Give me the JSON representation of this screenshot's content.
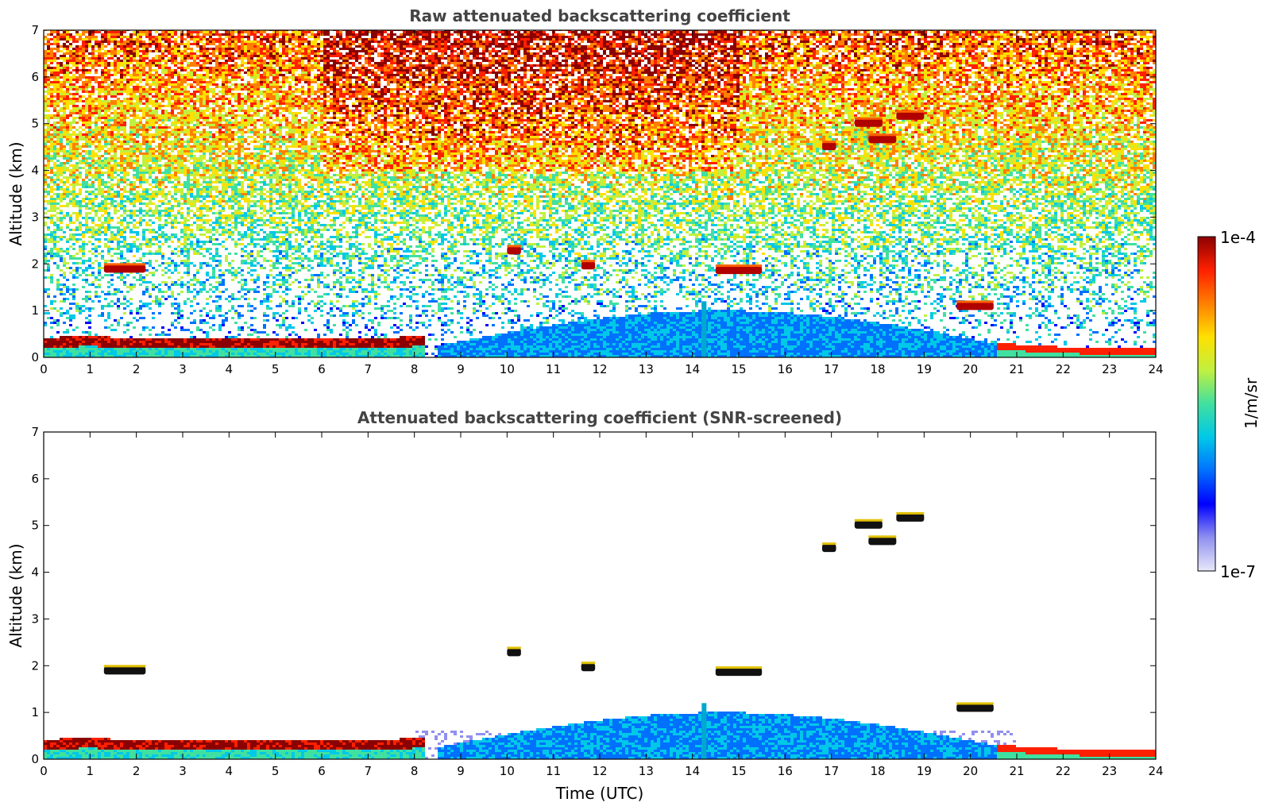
{
  "chart_data": [
    {
      "type": "heatmap",
      "title": "Raw attenuated backscattering coefficient",
      "xlabel": "",
      "ylabel": "Altitude (km)",
      "xlim": [
        0,
        24
      ],
      "ylim": [
        0,
        7
      ],
      "xticks": [
        "0",
        "1",
        "2",
        "3",
        "4",
        "5",
        "6",
        "7",
        "8",
        "9",
        "10",
        "11",
        "12",
        "13",
        "14",
        "15",
        "16",
        "17",
        "18",
        "19",
        "20",
        "21",
        "22",
        "23",
        "24"
      ],
      "yticks": [
        "0",
        "1",
        "2",
        "3",
        "4",
        "5",
        "6",
        "7"
      ],
      "features": {
        "boundary_layer": [
          [
            0,
            0.32
          ],
          [
            1,
            0.36
          ],
          [
            2,
            0.3
          ],
          [
            3,
            0.3
          ],
          [
            4,
            0.32
          ],
          [
            5,
            0.3
          ],
          [
            6,
            0.32
          ],
          [
            7,
            0.3
          ],
          [
            8,
            0.35
          ]
        ],
        "low_cloud_night": [
          [
            21,
            0.22
          ],
          [
            22,
            0.16
          ],
          [
            23,
            0.15
          ],
          [
            24,
            0.15
          ]
        ],
        "clouds": [
          {
            "x0": 1.3,
            "x1": 2.2,
            "y": 1.88
          },
          {
            "x0": 10.0,
            "x1": 10.3,
            "y": 2.27
          },
          {
            "x0": 11.6,
            "x1": 11.9,
            "y": 1.95
          },
          {
            "x0": 14.5,
            "x1": 15.5,
            "y": 1.85
          },
          {
            "x0": 16.8,
            "x1": 17.1,
            "y": 4.5
          },
          {
            "x0": 17.5,
            "x1": 18.1,
            "y": 5.0
          },
          {
            "x0": 17.8,
            "x1": 18.4,
            "y": 4.65
          },
          {
            "x0": 18.4,
            "x1": 19.0,
            "y": 5.15
          },
          {
            "x0": 19.7,
            "x1": 20.5,
            "y": 1.08
          }
        ]
      }
    },
    {
      "type": "heatmap",
      "title": "Attenuated backscattering coefficient (SNR-screened)",
      "xlabel": "Time (UTC)",
      "ylabel": "Altitude (km)",
      "xlim": [
        0,
        24
      ],
      "ylim": [
        0,
        7
      ],
      "xticks": [
        "0",
        "1",
        "2",
        "3",
        "4",
        "5",
        "6",
        "7",
        "8",
        "9",
        "10",
        "11",
        "12",
        "13",
        "14",
        "15",
        "16",
        "17",
        "18",
        "19",
        "20",
        "21",
        "22",
        "23",
        "24"
      ],
      "yticks": [
        "0",
        "1",
        "2",
        "3",
        "4",
        "5",
        "6",
        "7"
      ]
    }
  ],
  "colorbar": {
    "label": "1/m/sr",
    "max_label": "1e-4",
    "min_label": "1e-7",
    "scale": "log",
    "colors": [
      "#e8e8fa",
      "#9090f0",
      "#0000ff",
      "#0070ff",
      "#00c8e8",
      "#40e0a0",
      "#c0f040",
      "#ffe000",
      "#ff8000",
      "#ff2000",
      "#8b0000"
    ]
  }
}
